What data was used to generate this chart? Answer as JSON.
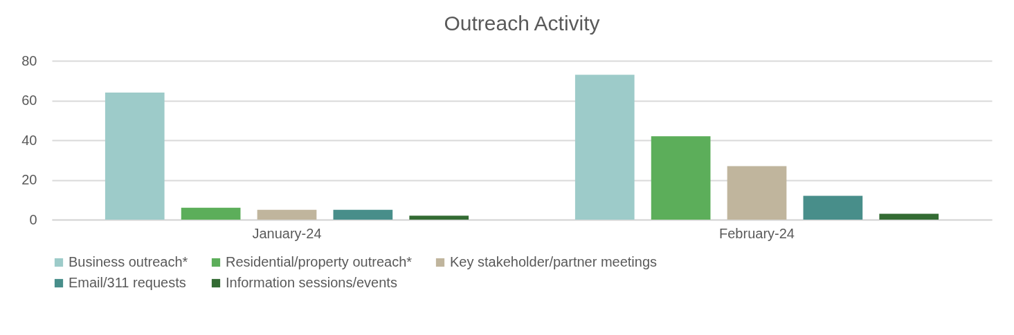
{
  "chart_data": {
    "type": "bar",
    "title": "Outreach Activity",
    "categories": [
      "January-24",
      "February-24"
    ],
    "series": [
      {
        "name": "Business outreach*",
        "color": "#9dcbc9",
        "values": [
          64,
          73
        ]
      },
      {
        "name": "Residential/property outreach*",
        "color": "#5cae5a",
        "values": [
          6,
          42
        ]
      },
      {
        "name": "Key stakeholder/partner meetings",
        "color": "#c0b59d",
        "values": [
          5,
          27
        ]
      },
      {
        "name": "Email/311 requests",
        "color": "#488e8a",
        "values": [
          5,
          12
        ]
      },
      {
        "name": "Information sessions/events",
        "color": "#336b33",
        "values": [
          2,
          3
        ]
      }
    ],
    "ylim": [
      0,
      80
    ],
    "yticks": [
      0,
      20,
      40,
      60,
      80
    ],
    "grid": "y",
    "legend": "bottom"
  }
}
